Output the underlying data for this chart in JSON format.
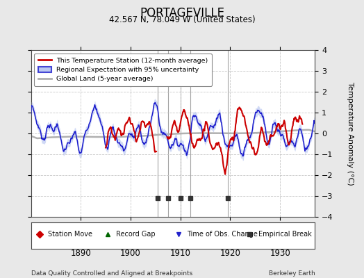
{
  "title": "PORTAGEVILLE",
  "subtitle": "42.567 N, 78.049 W (United States)",
  "ylabel": "Temperature Anomaly (°C)",
  "xlabel_bottom_left": "Data Quality Controlled and Aligned at Breakpoints",
  "xlabel_bottom_right": "Berkeley Earth",
  "xlim": [
    1880,
    1937
  ],
  "ylim": [
    -4,
    4
  ],
  "yticks": [
    -4,
    -3,
    -2,
    -1,
    0,
    1,
    2,
    3,
    4
  ],
  "xticks": [
    1890,
    1900,
    1910,
    1920,
    1930
  ],
  "background_color": "#e8e8e8",
  "plot_bg_color": "#ffffff",
  "grid_color": "#c8c8c8",
  "vertical_lines": [
    1905.5,
    1907.5,
    1910.0,
    1912.0,
    1919.5
  ],
  "empirical_breaks_x": [
    1905.5,
    1907.5,
    1910.0,
    1912.0,
    1919.5
  ],
  "empirical_break_y": -3.1
}
